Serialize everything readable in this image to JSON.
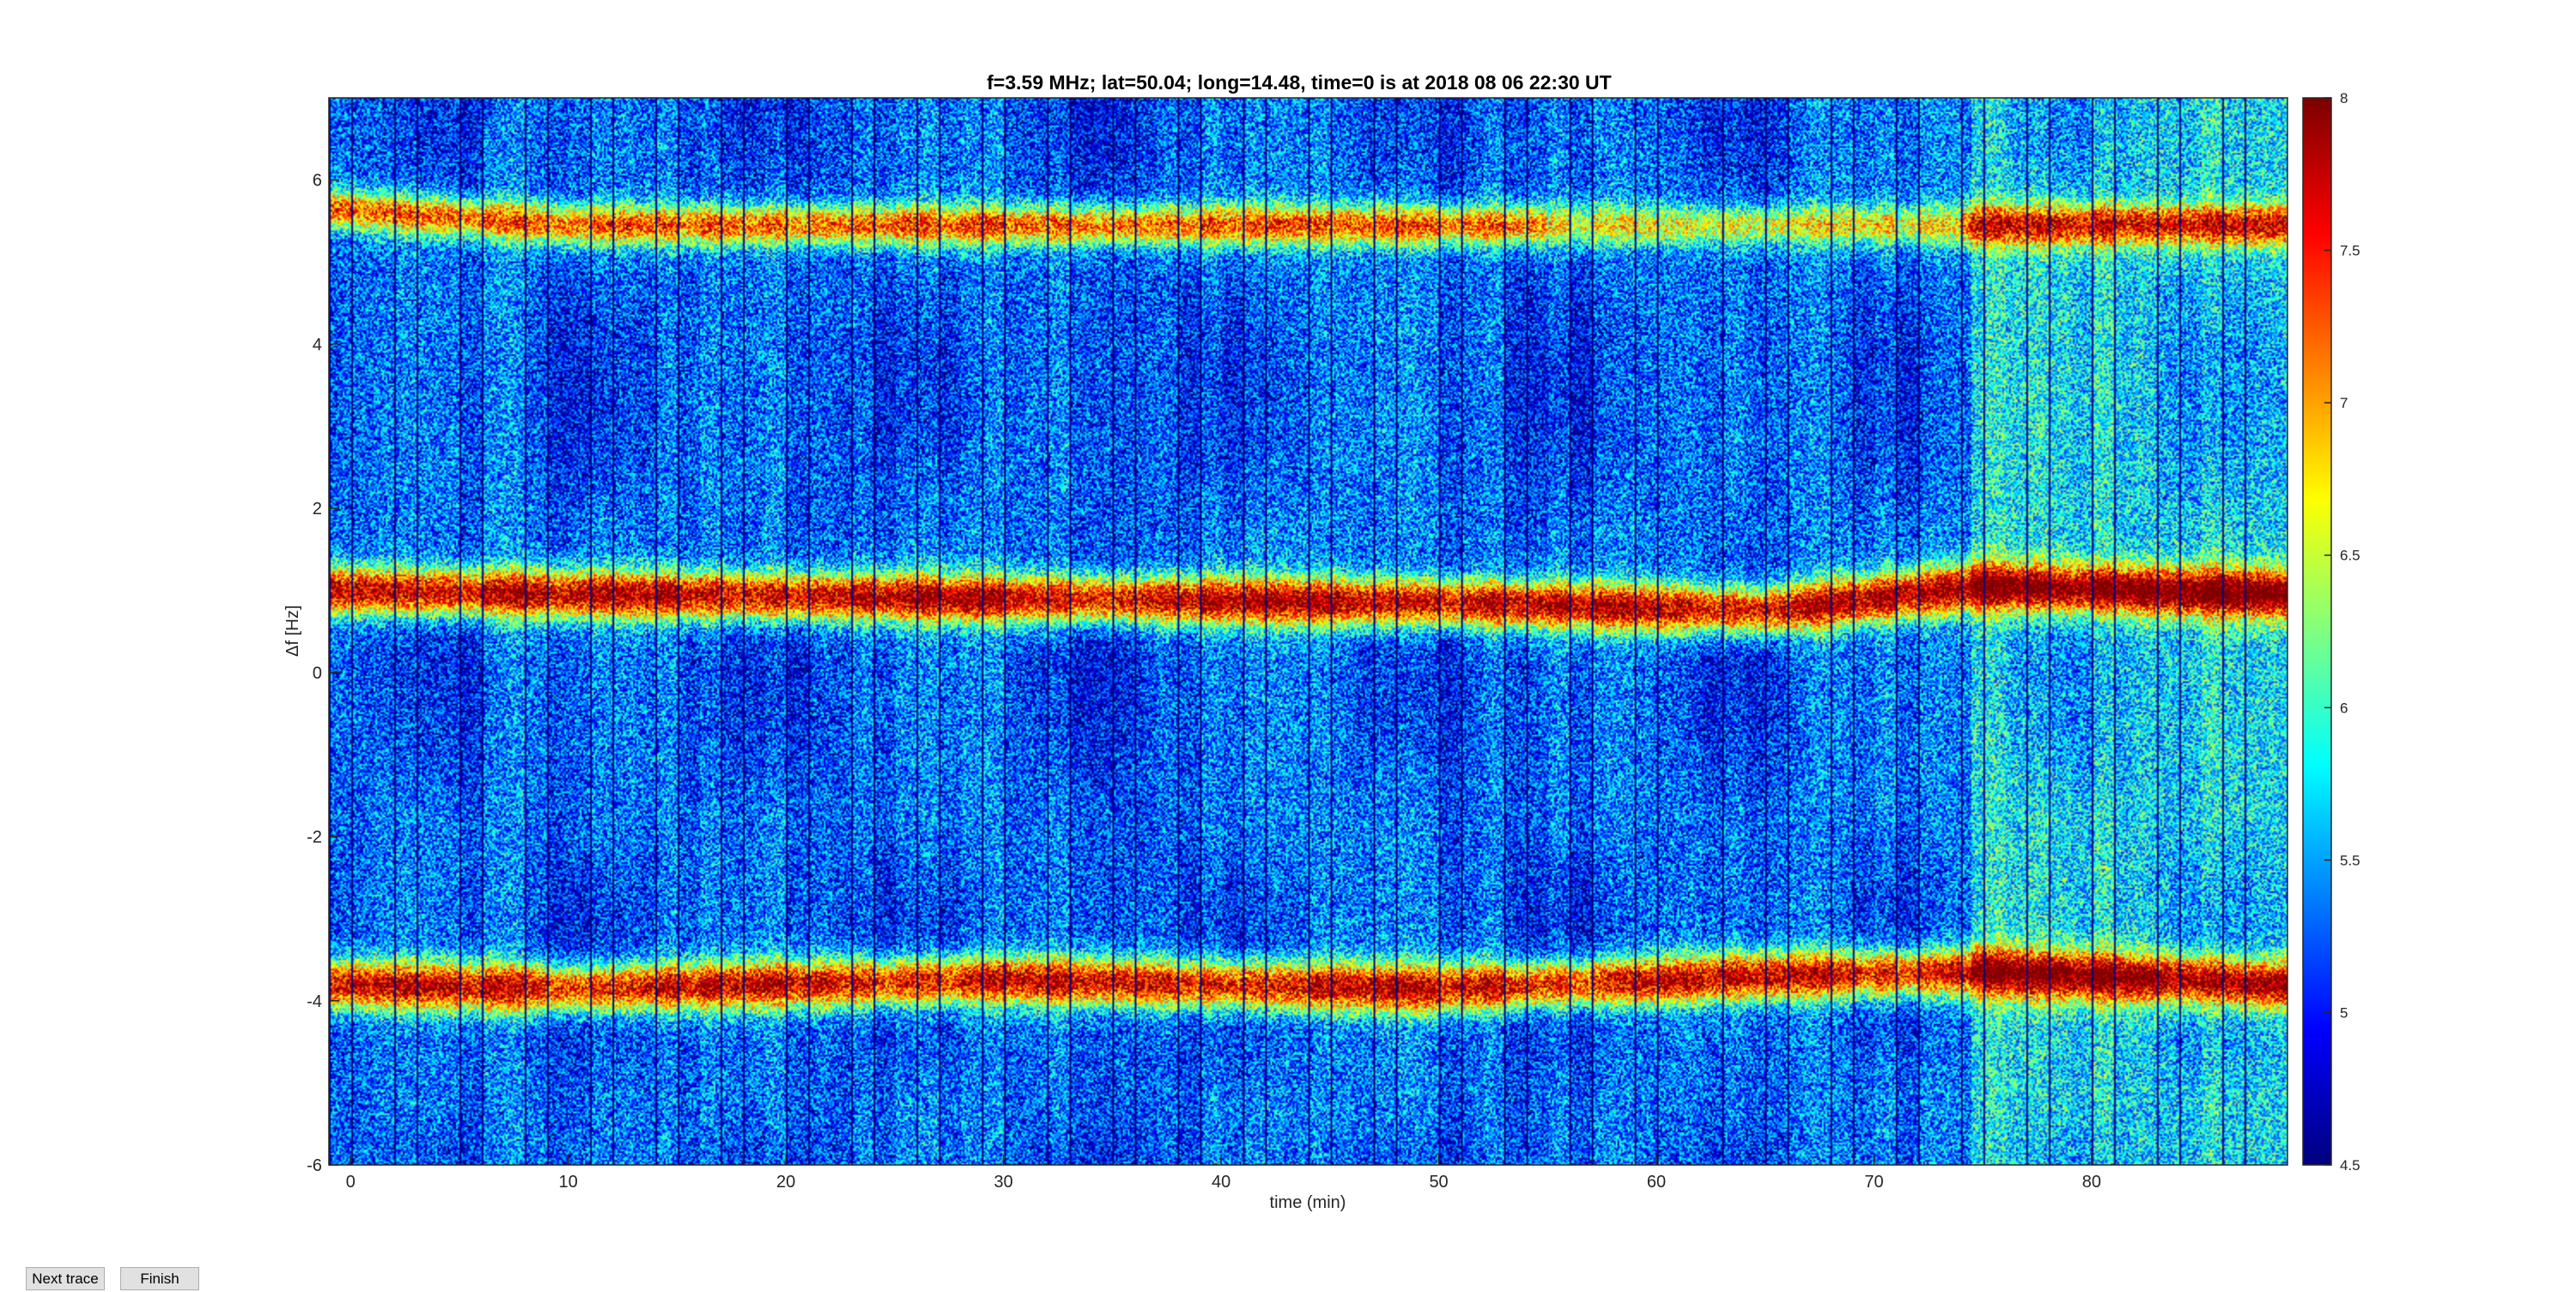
{
  "chart_data": {
    "type": "heatmap",
    "title": "f=3.59 MHz;  lat=50.04; long=14.48, time=0 is at 2018 08 06 22:30 UT",
    "xlabel": "time (min)",
    "ylabel": "Δf [Hz]",
    "xlim": [
      -1,
      89
    ],
    "ylim": [
      -6,
      7
    ],
    "xticks": [
      0,
      10,
      20,
      30,
      40,
      50,
      60,
      70,
      80
    ],
    "yticks": [
      -6,
      -4,
      -2,
      0,
      2,
      4,
      6
    ],
    "colorbar": {
      "limits": [
        4.5,
        8
      ],
      "ticks": [
        4.5,
        5,
        5.5,
        6,
        6.5,
        7,
        7.5,
        8
      ],
      "colormap": "jet"
    },
    "bands": [
      {
        "center_hz": 5.5,
        "peak": 7.3
      },
      {
        "center_hz": 0.9,
        "peak": 7.9
      },
      {
        "center_hz": -3.8,
        "peak": 7.8
      }
    ],
    "band_drift": [
      {
        "t": -1,
        "df_top": 5.65,
        "df_mid": 1.0,
        "df_bot": -3.8
      },
      {
        "t": 10,
        "df_top": 5.45,
        "df_mid": 0.95,
        "df_bot": -3.85
      },
      {
        "t": 30,
        "df_top": 5.45,
        "df_mid": 0.9,
        "df_bot": -3.75
      },
      {
        "t": 50,
        "df_top": 5.45,
        "df_mid": 0.85,
        "df_bot": -3.85
      },
      {
        "t": 65,
        "df_top": 5.45,
        "df_mid": 0.75,
        "df_bot": -3.7
      },
      {
        "t": 75,
        "df_top": 5.45,
        "df_mid": 1.05,
        "df_bot": -3.65
      },
      {
        "t": 89,
        "df_top": 5.45,
        "df_mid": 0.95,
        "df_bot": -3.8
      }
    ],
    "background_level": 5.3,
    "bright_interval_min": [
      74.5,
      89
    ],
    "grid": false
  },
  "buttons": {
    "next_trace": "Next trace",
    "finish": "Finish"
  }
}
